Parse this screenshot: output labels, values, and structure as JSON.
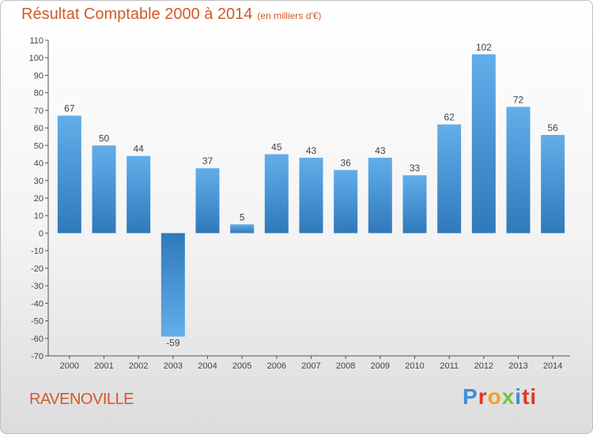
{
  "chart_data": {
    "type": "bar",
    "title": "Résultat Comptable 2000 à 2014",
    "subtitle": "(en milliers d'€)",
    "categories": [
      "2000",
      "2001",
      "2002",
      "2003",
      "2004",
      "2005",
      "2006",
      "2007",
      "2008",
      "2009",
      "2010",
      "2011",
      "2012",
      "2013",
      "2014"
    ],
    "values": [
      67,
      50,
      44,
      -59,
      37,
      5,
      45,
      43,
      36,
      43,
      33,
      62,
      102,
      72,
      56
    ],
    "ylim": [
      -70,
      110
    ],
    "yticks": [
      110,
      100,
      90,
      80,
      70,
      60,
      50,
      40,
      30,
      20,
      10,
      0,
      -10,
      -20,
      -30,
      -40,
      -50,
      -60,
      -70
    ],
    "grid": false,
    "xlabel": "",
    "ylabel": "",
    "colors": {
      "bar_light": "#62aeea",
      "bar_dark": "#2f79bb",
      "title": "#d05a2a",
      "axis": "#444444"
    }
  },
  "footer": {
    "commune": "RAVENOVILLE",
    "logo_letters": [
      "P",
      "r",
      "o",
      "x",
      "i",
      "ti"
    ]
  }
}
